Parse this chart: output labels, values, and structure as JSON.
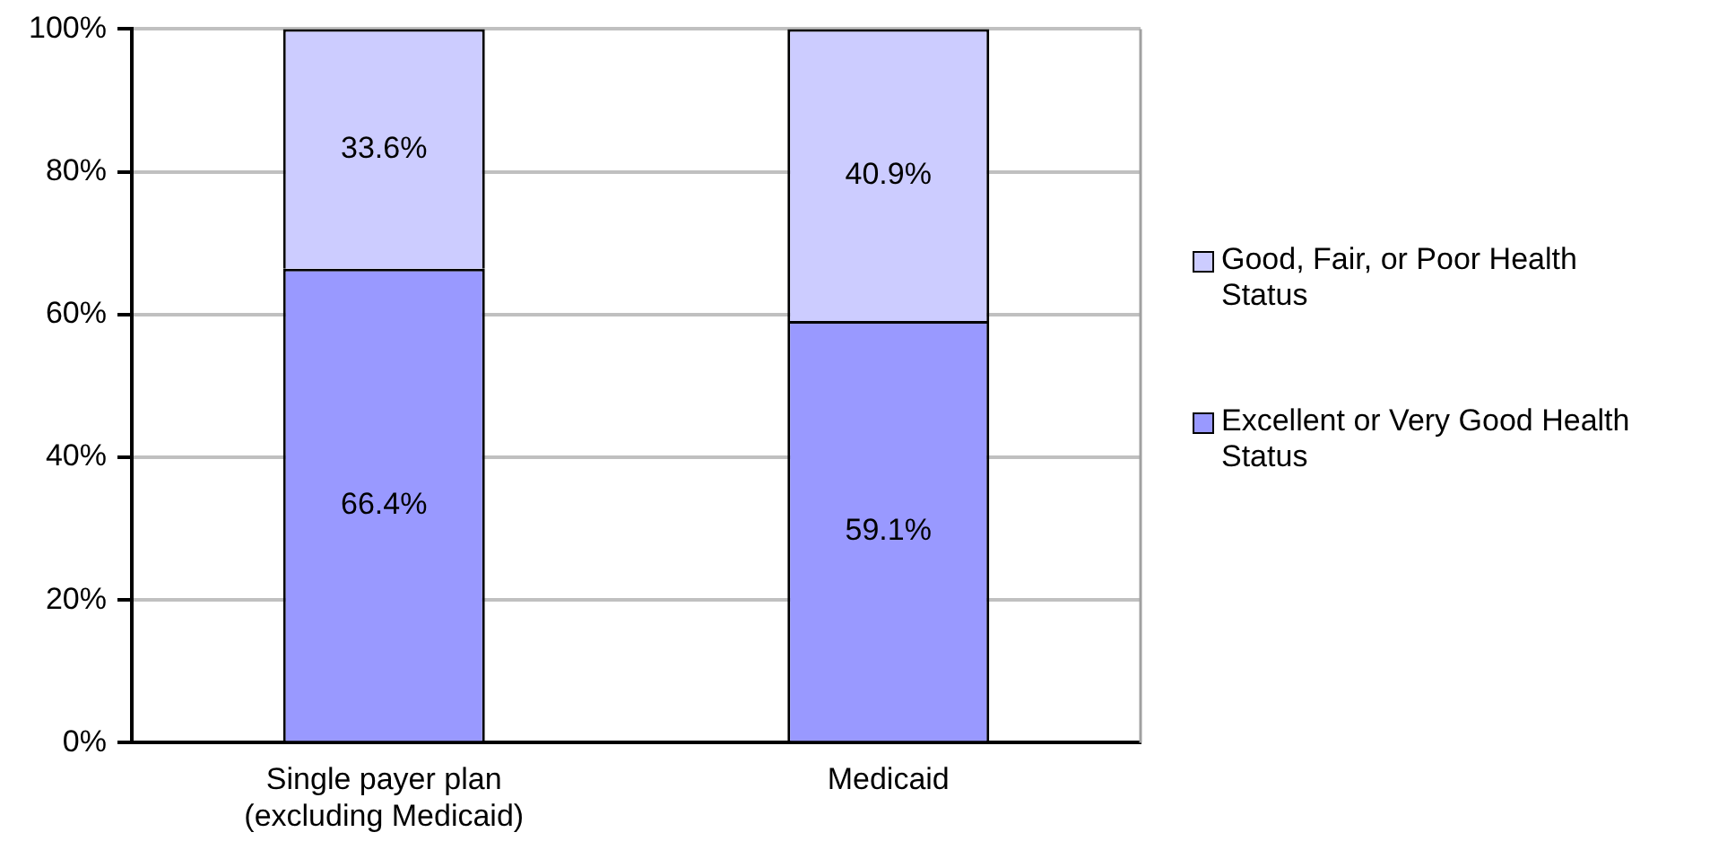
{
  "chart_data": {
    "type": "bar",
    "stacked": true,
    "categories": [
      "Single payer plan\n(excluding Medicaid)",
      "Medicaid"
    ],
    "series": [
      {
        "name": "Excellent or Very Good Health Status",
        "color": "#9999ff",
        "values": [
          66.4,
          59.1
        ],
        "value_labels": [
          "66.4%",
          "59.1%"
        ]
      },
      {
        "name": "Good, Fair, or Poor Health Status",
        "color": "#ccccff",
        "values": [
          33.6,
          40.9
        ],
        "value_labels": [
          "33.6%",
          "40.9%"
        ]
      }
    ],
    "ylim": [
      0,
      100
    ],
    "yticks": [
      {
        "value": 0,
        "label": "0%"
      },
      {
        "value": 20,
        "label": "20%"
      },
      {
        "value": 40,
        "label": "40%"
      },
      {
        "value": 60,
        "label": "60%"
      },
      {
        "value": 80,
        "label": "80%"
      },
      {
        "value": 100,
        "label": "100%"
      }
    ],
    "grid": "y",
    "legend": "right"
  }
}
